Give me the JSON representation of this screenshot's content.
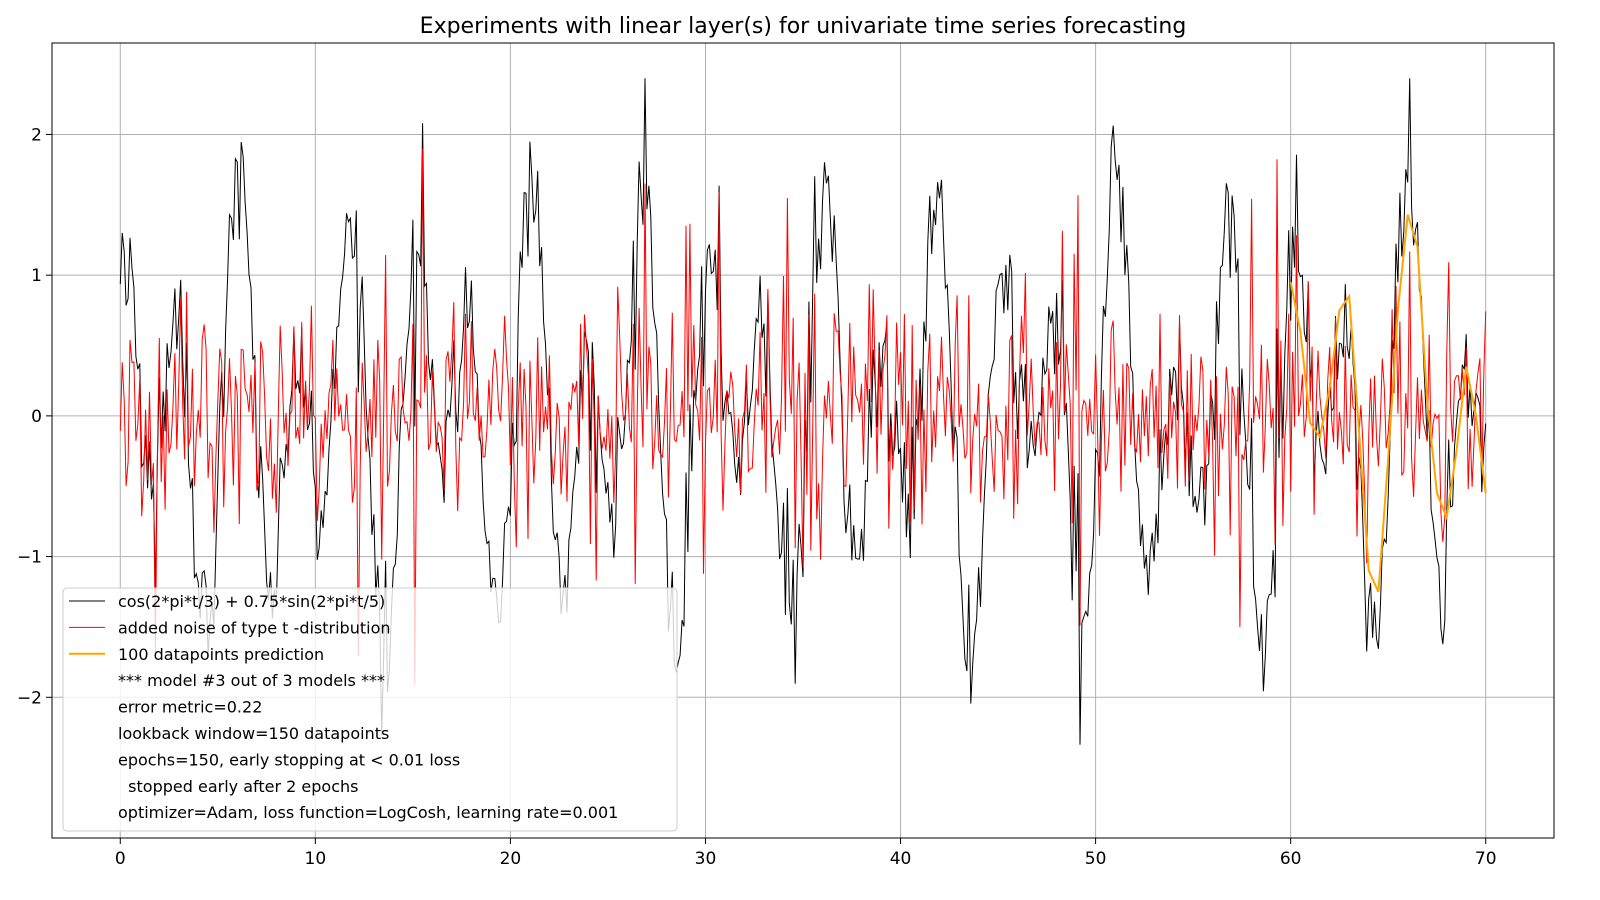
{
  "chart_data": {
    "type": "line",
    "title": "Experiments with linear layer(s) for univariate time series forecasting",
    "xlabel": "",
    "ylabel": "",
    "xlim": [
      -3.5,
      73.5
    ],
    "ylim": [
      -3.0,
      2.65
    ],
    "x_ticks": [
      0,
      10,
      20,
      30,
      40,
      50,
      60,
      70
    ],
    "y_ticks": [
      -2,
      -1,
      0,
      1,
      2
    ],
    "x_tick_labels": [
      "0",
      "10",
      "20",
      "30",
      "40",
      "50",
      "60",
      "70"
    ],
    "y_tick_labels": [
      "−2",
      "−1",
      "0",
      "1",
      "2"
    ],
    "grid": true,
    "legend_position": "lower-left",
    "series": [
      {
        "name": "cos(2*pi*t/3) + 0.75*sin(2*pi*t/5)",
        "color": "#000000",
        "function": "cos(2*pi*t/3) + 0.75*sin(2*pi*t/5)",
        "x_range": [
          0,
          70
        ],
        "samples": 700,
        "noisy": true
      },
      {
        "name": "added noise of type t -distribution",
        "color": "#ff0000",
        "x_range": [
          0,
          70
        ],
        "samples": 700,
        "noise_scale": 0.35
      },
      {
        "name": "100 datapoints prediction",
        "color": "#ffa500",
        "x": [
          60,
          60.5,
          61,
          61.5,
          62,
          62.5,
          63,
          63.5,
          64,
          64.5,
          65,
          65.5,
          66,
          66.5,
          67,
          67.5,
          68,
          68.5,
          69,
          69.5,
          70
        ],
        "values": [
          0.95,
          0.6,
          -0.05,
          -0.15,
          0.2,
          0.75,
          0.85,
          -0.1,
          -1.1,
          -1.25,
          -0.3,
          0.75,
          1.43,
          1.2,
          0.1,
          -0.55,
          -0.72,
          -0.25,
          0.35,
          0.0,
          -0.55
        ]
      }
    ],
    "legend_extra_lines": [
      "*** model #3 out of 3 models ***",
      "error metric=0.22",
      "lookback window=150 datapoints",
      "epochs=150, early stopping at < 0.01 loss",
      "  stopped early after 2 epochs",
      "optimizer=Adam, loss function=LogCosh, learning rate=0.001"
    ]
  }
}
